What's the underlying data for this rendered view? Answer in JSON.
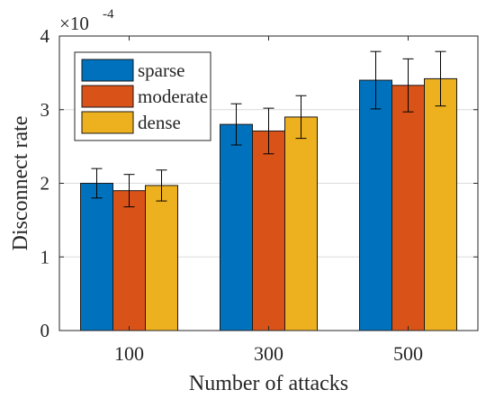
{
  "chart_data": {
    "type": "bar",
    "categories": [
      "100",
      "300",
      "500"
    ],
    "series": [
      {
        "name": "sparse",
        "color": "#0072BD",
        "values": [
          2.0,
          2.8,
          3.4
        ],
        "errors": [
          0.2,
          0.28,
          0.39
        ]
      },
      {
        "name": "moderate",
        "color": "#D95319",
        "values": [
          1.9,
          2.71,
          3.33
        ],
        "errors": [
          0.22,
          0.31,
          0.36
        ]
      },
      {
        "name": "dense",
        "color": "#EDB120",
        "values": [
          1.97,
          2.9,
          3.42
        ],
        "errors": [
          0.21,
          0.29,
          0.37
        ]
      }
    ],
    "xlabel": "Number of attacks",
    "ylabel": "Disconnect rate",
    "ylim": [
      0,
      4
    ],
    "yticks": [
      "0",
      "1",
      "2",
      "3",
      "4"
    ],
    "exponent": {
      "base": "×10",
      "power": "-4"
    },
    "grid": "horizontal",
    "legend_position": "top-left"
  }
}
